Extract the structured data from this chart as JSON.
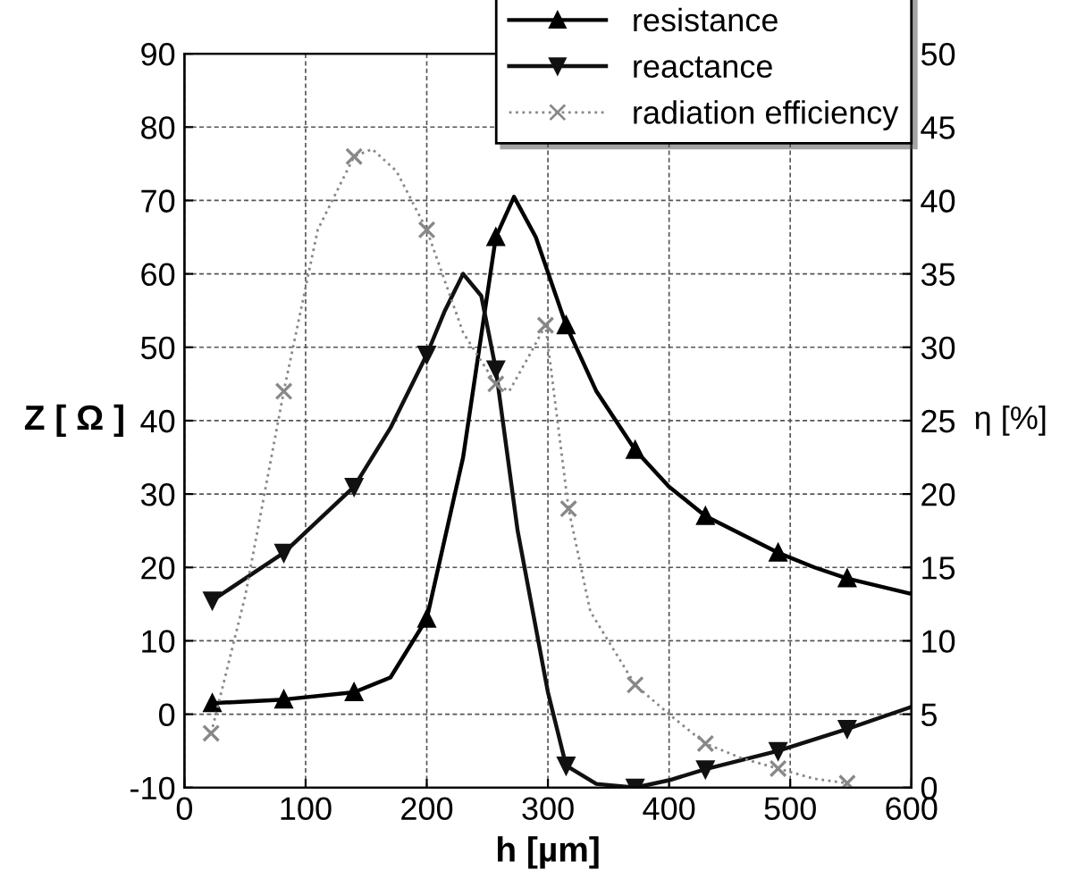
{
  "chart_data": {
    "type": "line",
    "xlabel": "h [µm]",
    "ylabel": "Z [ Ω ]",
    "y2label": "η [%]",
    "xlim": [
      0,
      600
    ],
    "xticks": [
      0,
      100,
      200,
      300,
      400,
      500,
      600
    ],
    "ylim": [
      -10,
      90
    ],
    "yticks": [
      -10,
      0,
      10,
      20,
      30,
      40,
      50,
      60,
      70,
      80,
      90
    ],
    "y2lim": [
      0,
      50
    ],
    "y2ticks": [
      0,
      5,
      10,
      15,
      20,
      25,
      30,
      35,
      40,
      45,
      50
    ],
    "grid": true,
    "legend": "top right",
    "series": [
      {
        "color": "#000000",
        "line_style": "solid",
        "x": [
          23,
          82,
          140,
          170,
          200,
          230,
          257,
          272,
          290,
          315,
          340,
          372,
          400,
          430,
          460,
          490,
          520,
          547,
          600
        ],
        "values": [
          1.5,
          2,
          3,
          5,
          13,
          35,
          65,
          70.5,
          65,
          53,
          44,
          36,
          31,
          27,
          24.5,
          22,
          20,
          18.5,
          16.4
        ]
      },
      {
        "color": "#111111",
        "line_style": "solid",
        "x": [
          23,
          82,
          140,
          170,
          200,
          215,
          230,
          245,
          257,
          275,
          300,
          315,
          340,
          372,
          400,
          430,
          490,
          547,
          600
        ],
        "values": [
          15.5,
          22,
          31,
          39,
          49,
          55,
          60,
          57,
          47,
          25,
          3,
          -7,
          -9.5,
          -10,
          -9,
          -7.5,
          -5,
          -2,
          1
        ]
      },
      {
        "color": "#888888",
        "line_style": "dotted",
        "axis": "y2",
        "x": [
          22,
          50,
          82,
          110,
          140,
          155,
          175,
          200,
          230,
          257,
          268,
          285,
          298,
          317,
          335,
          372,
          400,
          430,
          460,
          490,
          520,
          547
        ],
        "values": [
          3.7,
          13,
          27,
          38,
          43,
          43.5,
          42,
          38,
          31,
          27.5,
          27,
          29.5,
          31.5,
          19,
          12,
          7,
          5,
          3,
          2,
          1.3,
          0.6,
          0.3
        ]
      },
      {
        "name": "resistance",
        "type": "scatter",
        "color": "#000000",
        "marker": "triangle",
        "x": [
          23,
          82,
          140,
          200,
          257,
          315,
          372,
          430,
          490,
          547
        ],
        "values": [
          1.5,
          2,
          3,
          13,
          65,
          53,
          36,
          27,
          22,
          18.5
        ]
      },
      {
        "name": "reactance",
        "type": "scatter",
        "color": "#111111",
        "marker": "triangle_down",
        "x": [
          23,
          82,
          140,
          200,
          257,
          315,
          372,
          430,
          490,
          547
        ],
        "values": [
          15.5,
          22,
          31,
          49,
          47,
          -7,
          -10,
          -7.5,
          -5,
          -2
        ]
      },
      {
        "name": "radiation efficiency",
        "type": "scatter",
        "color": "#888888",
        "marker": "cross",
        "axis": "y2",
        "x": [
          22,
          82,
          140,
          200,
          257,
          298,
          317,
          372,
          430,
          490,
          547
        ],
        "values": [
          3.7,
          27,
          43,
          38,
          27.5,
          31.5,
          19,
          7,
          3,
          1.3,
          0.3
        ]
      }
    ]
  }
}
